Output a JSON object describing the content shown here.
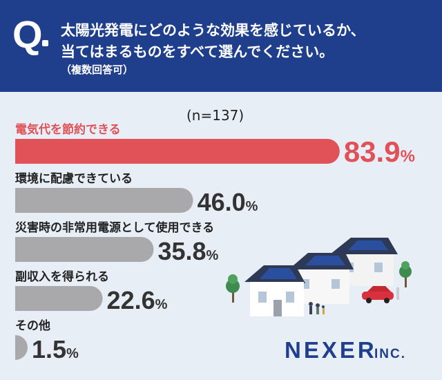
{
  "header": {
    "q_mark": "Q",
    "question_line1": "太陽光発電にどのような効果を感じているか、",
    "question_line2": "当てはまるものをすべて選んでください。",
    "question_note": "（複数回答可）"
  },
  "sample_size": "(n=137)",
  "brand": {
    "logo": "NEXER",
    "logo_suffix": "INC."
  },
  "colors": {
    "highlight": "#e05158",
    "bar": "#a9a9ab",
    "header_bg": "#1f3f8c",
    "page_bg": "#e8eef5"
  },
  "chart_data": {
    "type": "bar",
    "orientation": "horizontal",
    "categories": [
      "電気代を節約できる",
      "環境に配慮できている",
      "災害時の非常用電源として使用できる",
      "副収入を得られる",
      "その他"
    ],
    "values": [
      83.9,
      46.0,
      35.8,
      22.6,
      1.5
    ],
    "value_labels": [
      "83.9",
      "46.0",
      "35.8",
      "22.6",
      "1.5"
    ],
    "unit": "%",
    "highlight_index": 0,
    "xlim": [
      0,
      100
    ]
  }
}
